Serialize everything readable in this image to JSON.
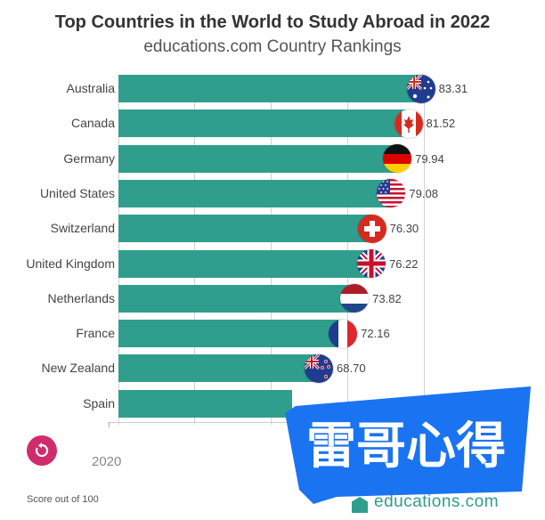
{
  "header": {
    "title": "Top Countries in the World to Study Abroad in 2022",
    "subtitle": "educations.com Country Rankings"
  },
  "chart_data": {
    "type": "bar",
    "orientation": "horizontal",
    "title": "Top Countries in the World to Study Abroad in 2022",
    "subtitle": "educations.com Country Rankings",
    "categories": [
      "Australia",
      "Canada",
      "Germany",
      "United States",
      "Switzerland",
      "United Kingdom",
      "Netherlands",
      "France",
      "New Zealand",
      "Spain"
    ],
    "values": [
      83.31,
      81.52,
      79.94,
      79.08,
      76.3,
      76.22,
      73.82,
      72.16,
      68.7,
      64.9
    ],
    "value_labels": [
      "83.31",
      "81.52",
      "79.94",
      "79.08",
      "76.30",
      "76.22",
      "73.82",
      "72.16",
      "68.70",
      ""
    ],
    "flags": [
      "australia",
      "canada",
      "germany",
      "united-states",
      "switzerland",
      "united-kingdom",
      "netherlands",
      "france",
      "new-zealand",
      ""
    ],
    "xlim": [
      40,
      84
    ],
    "grid": true,
    "bar_color": "#2f9e8c"
  },
  "axis": {
    "year": "2020"
  },
  "footnote": "Score out of 100",
  "source": "educations.com",
  "watermark": {
    "text": "雷哥心得",
    "color": "#1a73f0",
    "text_color": "#ffffff"
  },
  "colors": {
    "replay": "#d02b6c",
    "accent": "#2f9e8c"
  },
  "icons": {
    "replay": "replay-icon"
  }
}
